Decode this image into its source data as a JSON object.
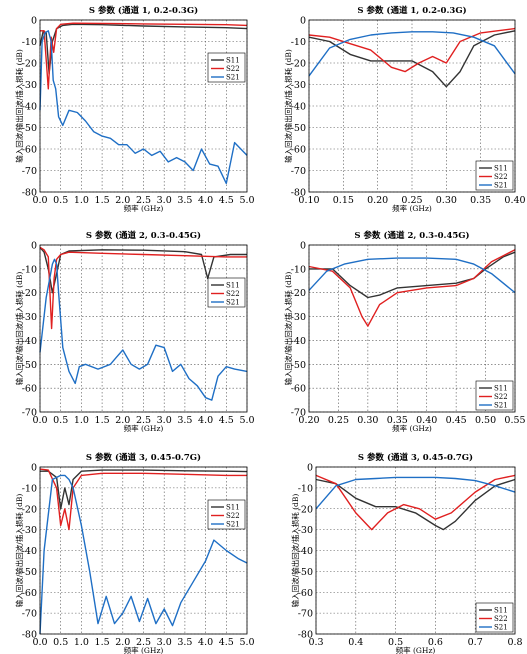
{
  "colors": {
    "S11": "#333333",
    "S22": "#e02020",
    "S21": "#1f6fc5"
  },
  "chart_data": [
    {
      "type": "line",
      "title": "S 参数 (通道 1, 0.2-0.3G)",
      "xlabel": "频率 (GHz)",
      "ylabel": "输入回波/输出回波/插入损耗 (dB)",
      "xlim": [
        0,
        5
      ],
      "ylim": [
        -80,
        0
      ],
      "xticks": [
        "0.0",
        "0.5",
        "1.0",
        "1.5",
        "2.0",
        "2.5",
        "3.0",
        "3.5",
        "4.0",
        "4.5",
        "5.0"
      ],
      "yticks": [
        "0",
        "-10",
        "-20",
        "-30",
        "-40",
        "-50",
        "-60",
        "-70",
        "-80"
      ],
      "grid": true,
      "legend": "top-right",
      "series": [
        {
          "name": "S11",
          "x": [
            0,
            0.08,
            0.15,
            0.22,
            0.3,
            0.4,
            0.55,
            0.8,
            1.5,
            2.5,
            3.5,
            4.5,
            5
          ],
          "y": [
            -12,
            -5,
            -6,
            -25,
            -10,
            -4,
            -2.5,
            -2,
            -2.2,
            -2.8,
            -3.2,
            -3.6,
            -4
          ]
        },
        {
          "name": "S22",
          "x": [
            0,
            0.1,
            0.2,
            0.27,
            0.33,
            0.4,
            0.5,
            0.8,
            1.5,
            2.5,
            3.5,
            4.5,
            5
          ],
          "y": [
            -5,
            -5,
            -32,
            -8,
            -15,
            -4,
            -2,
            -1.5,
            -1.6,
            -1.8,
            -2,
            -2.2,
            -2.5
          ]
        },
        {
          "name": "S21",
          "x": [
            0,
            0.05,
            0.12,
            0.2,
            0.27,
            0.32,
            0.38,
            0.45,
            0.55,
            0.7,
            0.9,
            1.1,
            1.3,
            1.5,
            1.7,
            1.9,
            2.1,
            2.3,
            2.5,
            2.7,
            2.9,
            3.1,
            3.3,
            3.5,
            3.7,
            3.9,
            4.1,
            4.3,
            4.5,
            4.7,
            4.85,
            5
          ],
          "y": [
            -42,
            -10,
            -6,
            -5,
            -10,
            -28,
            -32,
            -45,
            -49,
            -42,
            -43,
            -47,
            -52,
            -54,
            -55,
            -58,
            -58,
            -62,
            -60,
            -63,
            -61,
            -66,
            -64,
            -66,
            -70,
            -60,
            -67,
            -68,
            -76,
            -57,
            -60,
            -63
          ]
        }
      ]
    },
    {
      "type": "line",
      "title": "S 参数 (通道 1, 0.2-0.3G)",
      "xlabel": "频率 (GHz)",
      "ylabel": "输入回波/输出回波/插入损耗 (dB)",
      "xlim": [
        0.1,
        0.4
      ],
      "ylim": [
        -80,
        0
      ],
      "xticks": [
        "0.10",
        "0.15",
        "0.20",
        "0.25",
        "0.30",
        "0.35",
        "0.40"
      ],
      "yticks": [
        "0",
        "-10",
        "-20",
        "-30",
        "-40",
        "-50",
        "-60",
        "-70",
        "-80"
      ],
      "grid": true,
      "legend": "bottom-right",
      "series": [
        {
          "name": "S11",
          "x": [
            0.1,
            0.13,
            0.16,
            0.19,
            0.22,
            0.25,
            0.28,
            0.3,
            0.32,
            0.34,
            0.37,
            0.4
          ],
          "y": [
            -8,
            -10,
            -16,
            -19,
            -19,
            -19,
            -24,
            -31,
            -24,
            -12,
            -7,
            -5
          ]
        },
        {
          "name": "S22",
          "x": [
            0.1,
            0.13,
            0.16,
            0.19,
            0.22,
            0.24,
            0.26,
            0.28,
            0.3,
            0.32,
            0.35,
            0.4
          ],
          "y": [
            -7,
            -8,
            -11,
            -14,
            -22,
            -24,
            -20,
            -17,
            -20,
            -10,
            -6,
            -4
          ]
        },
        {
          "name": "S21",
          "x": [
            0.1,
            0.13,
            0.16,
            0.19,
            0.22,
            0.25,
            0.28,
            0.31,
            0.34,
            0.37,
            0.4
          ],
          "y": [
            -26,
            -13,
            -9,
            -7,
            -6,
            -5.5,
            -5.5,
            -6,
            -8,
            -12,
            -25
          ]
        }
      ]
    },
    {
      "type": "line",
      "title": "S 参数 (通道 2, 0.3-0.45G)",
      "xlabel": "频率 (GHz)",
      "ylabel": "输入回波/输出回波/插入损耗 (dB)",
      "xlim": [
        0,
        5
      ],
      "ylim": [
        -70,
        0
      ],
      "xticks": [
        "0.0",
        "0.5",
        "1.0",
        "1.5",
        "2.0",
        "2.5",
        "3.0",
        "3.5",
        "4.0",
        "4.5",
        "5.0"
      ],
      "yticks": [
        "0",
        "-10",
        "-20",
        "-30",
        "-40",
        "-50",
        "-60",
        "-70"
      ],
      "grid": true,
      "legend": "top-right",
      "series": [
        {
          "name": "S11",
          "x": [
            0,
            0.1,
            0.2,
            0.3,
            0.4,
            0.5,
            0.7,
            1.5,
            2.5,
            3.5,
            3.9,
            4.05,
            4.2,
            4.6,
            5
          ],
          "y": [
            -1,
            -3,
            -10,
            -20,
            -12,
            -4,
            -2.5,
            -2,
            -2.2,
            -2.8,
            -4,
            -14,
            -5,
            -4,
            -4
          ]
        },
        {
          "name": "S22",
          "x": [
            0,
            0.1,
            0.2,
            0.28,
            0.34,
            0.4,
            0.5,
            0.7,
            1.5,
            2.5,
            3.5,
            4.5,
            5
          ],
          "y": [
            -1,
            -2,
            -5,
            -35,
            -14,
            -6,
            -4,
            -3,
            -3.5,
            -4,
            -4.5,
            -5,
            -5
          ]
        },
        {
          "name": "S21",
          "x": [
            0,
            0.15,
            0.3,
            0.35,
            0.4,
            0.45,
            0.55,
            0.7,
            0.85,
            0.95,
            1.1,
            1.4,
            1.7,
            1.85,
            2,
            2.2,
            2.4,
            2.6,
            2.8,
            3,
            3.2,
            3.4,
            3.6,
            3.8,
            4,
            4.15,
            4.3,
            4.5,
            4.7,
            5
          ],
          "y": [
            -45,
            -22,
            -8,
            -6,
            -8,
            -20,
            -43,
            -53,
            -58,
            -51,
            -50,
            -52,
            -50,
            -47,
            -44,
            -50,
            -52,
            -50,
            -42,
            -43,
            -53,
            -50,
            -56,
            -59,
            -64,
            -65,
            -55,
            -51,
            -52,
            -53
          ]
        }
      ]
    },
    {
      "type": "line",
      "title": "S 参数 (通道 2, 0.3-0.45G)",
      "xlabel": "频率 (GHz)",
      "ylabel": "输入回波/输出回波/插入损耗 (dB)",
      "xlim": [
        0.2,
        0.55
      ],
      "ylim": [
        -70,
        0
      ],
      "xticks": [
        "0.20",
        "0.25",
        "0.30",
        "0.35",
        "0.40",
        "0.45",
        "0.50",
        "0.55"
      ],
      "yticks": [
        "0",
        "-10",
        "-20",
        "-30",
        "-40",
        "-50",
        "-60",
        "-70"
      ],
      "grid": true,
      "legend": "bottom-right",
      "series": [
        {
          "name": "S11",
          "x": [
            0.2,
            0.24,
            0.27,
            0.3,
            0.32,
            0.35,
            0.4,
            0.45,
            0.48,
            0.5,
            0.53,
            0.55
          ],
          "y": [
            -10,
            -10,
            -17,
            -22,
            -21,
            -18,
            -17,
            -16,
            -14,
            -10,
            -5,
            -3
          ]
        },
        {
          "name": "S22",
          "x": [
            0.2,
            0.24,
            0.27,
            0.29,
            0.3,
            0.32,
            0.35,
            0.4,
            0.45,
            0.48,
            0.51,
            0.55
          ],
          "y": [
            -9,
            -11,
            -18,
            -30,
            -34,
            -25,
            -20,
            -18,
            -17,
            -14,
            -7,
            -2
          ]
        },
        {
          "name": "S21",
          "x": [
            0.2,
            0.23,
            0.26,
            0.3,
            0.35,
            0.4,
            0.45,
            0.48,
            0.51,
            0.55
          ],
          "y": [
            -19,
            -11,
            -8,
            -6,
            -5.5,
            -5.5,
            -6,
            -8,
            -12,
            -20
          ]
        }
      ]
    },
    {
      "type": "line",
      "title": "S 参数 (通道 3, 0.45-0.7G)",
      "xlabel": "频率 (GHz)",
      "ylabel": "输入回波/输出回波/插入损耗 (dB)",
      "xlim": [
        0,
        5
      ],
      "ylim": [
        -80,
        0
      ],
      "xticks": [
        "0.0",
        "0.5",
        "1.0",
        "1.5",
        "2.0",
        "2.5",
        "3.0",
        "3.5",
        "4.0",
        "4.5",
        "5.0"
      ],
      "yticks": [
        "0",
        "-10",
        "-20",
        "-30",
        "-40",
        "-50",
        "-60",
        "-70",
        "-80"
      ],
      "grid": true,
      "legend": "top-right",
      "series": [
        {
          "name": "S11",
          "x": [
            0,
            0.2,
            0.4,
            0.5,
            0.6,
            0.7,
            0.8,
            1,
            1.5,
            2.5,
            3.5,
            4.5,
            5
          ],
          "y": [
            -2,
            -2,
            -5,
            -20,
            -10,
            -18,
            -6,
            -2,
            -1.5,
            -1.5,
            -1.8,
            -2,
            -2.2
          ]
        },
        {
          "name": "S22",
          "x": [
            0,
            0.2,
            0.4,
            0.5,
            0.6,
            0.7,
            0.8,
            1,
            1.5,
            2.5,
            3.5,
            4.5,
            5
          ],
          "y": [
            -1,
            -1.5,
            -10,
            -28,
            -20,
            -30,
            -10,
            -4,
            -3,
            -3,
            -3.5,
            -4,
            -4
          ]
        },
        {
          "name": "S21",
          "x": [
            0,
            0.1,
            0.3,
            0.5,
            0.6,
            0.7,
            0.8,
            1,
            1.2,
            1.4,
            1.6,
            1.8,
            2,
            2.2,
            2.4,
            2.6,
            2.8,
            3,
            3.2,
            3.4,
            3.7,
            4,
            4.2,
            4.5,
            4.8,
            5
          ],
          "y": [
            -80,
            -40,
            -6,
            -4,
            -4,
            -6,
            -10,
            -28,
            -50,
            -75,
            -62,
            -75,
            -70,
            -62,
            -74,
            -63,
            -75,
            -68,
            -76,
            -65,
            -55,
            -45,
            -35,
            -40,
            -44,
            -46
          ]
        }
      ]
    },
    {
      "type": "line",
      "title": "S 参数 (通道 3, 0.45-0.7G)",
      "xlabel": "频率 (GHz)",
      "ylabel": "输入回波/输出回波/插入损耗 (dB)",
      "xlim": [
        0.3,
        0.8
      ],
      "ylim": [
        -80,
        0
      ],
      "xticks": [
        "0.3",
        "0.4",
        "0.5",
        "0.6",
        "0.7",
        "0.8"
      ],
      "yticks": [
        "0",
        "-10",
        "-20",
        "-30",
        "-40",
        "-50",
        "-60",
        "-70",
        "-80"
      ],
      "grid": true,
      "legend": "bottom-right",
      "series": [
        {
          "name": "S11",
          "x": [
            0.3,
            0.35,
            0.4,
            0.45,
            0.5,
            0.55,
            0.6,
            0.62,
            0.65,
            0.7,
            0.75,
            0.8
          ],
          "y": [
            -6,
            -8,
            -15,
            -19,
            -19,
            -22,
            -28,
            -30,
            -26,
            -16,
            -9,
            -6
          ]
        },
        {
          "name": "S22",
          "x": [
            0.3,
            0.35,
            0.4,
            0.44,
            0.48,
            0.52,
            0.56,
            0.6,
            0.64,
            0.7,
            0.75,
            0.8
          ],
          "y": [
            -4,
            -8,
            -22,
            -30,
            -22,
            -18,
            -20,
            -25,
            -22,
            -12,
            -6,
            -4
          ]
        },
        {
          "name": "S21",
          "x": [
            0.3,
            0.35,
            0.4,
            0.45,
            0.5,
            0.55,
            0.6,
            0.65,
            0.7,
            0.75,
            0.8
          ],
          "y": [
            -20,
            -9,
            -6,
            -5.5,
            -5,
            -5,
            -5,
            -5.5,
            -6.5,
            -9,
            -12
          ]
        }
      ]
    }
  ]
}
